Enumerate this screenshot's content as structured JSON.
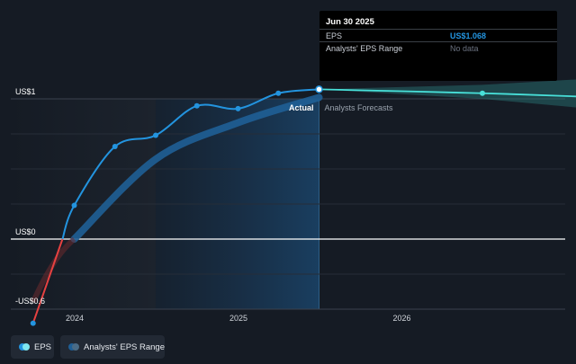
{
  "chart_data": {
    "type": "line",
    "y_label_top": "US$1",
    "y_label_zero": "US$0",
    "y_label_bottom": "-US$0.6",
    "x_ticks": [
      "2024",
      "2025",
      "2026"
    ],
    "actual_label": "Actual",
    "forecast_label": "Analysts Forecasts",
    "ylim": [
      -0.6,
      1.0
    ],
    "series": [
      {
        "name": "EPS",
        "color": "#2394df",
        "points": [
          {
            "x": "2023-09-30",
            "y": -0.6
          },
          {
            "x": "2023-12-31",
            "y": 0.24
          },
          {
            "x": "2024-03-31",
            "y": 0.66
          },
          {
            "x": "2024-06-30",
            "y": 0.74
          },
          {
            "x": "2024-09-30",
            "y": 0.95
          },
          {
            "x": "2024-12-31",
            "y": 0.93
          },
          {
            "x": "2025-03-31",
            "y": 1.04
          },
          {
            "x": "2025-06-30",
            "y": 1.068
          }
        ]
      },
      {
        "name": "Analysts Forecasts",
        "color": "#48e0d9",
        "points": [
          {
            "x": "2025-06-30",
            "y": 1.068
          },
          {
            "x": "2026-06-30",
            "y": 1.04
          },
          {
            "x": "2027-03-31",
            "y": 1.01
          }
        ],
        "range_upper": [
          1.068,
          1.1,
          1.15
        ],
        "range_lower": [
          1.068,
          1.0,
          0.92
        ]
      },
      {
        "name": "Analysts' EPS Range",
        "color": "#1f5f96",
        "points": [
          {
            "x": "2023-12-31",
            "y": 0.0
          },
          {
            "x": "2024-06-30",
            "y": 0.57
          },
          {
            "x": "2024-12-31",
            "y": 0.83
          },
          {
            "x": "2025-06-30",
            "y": 1.01
          }
        ]
      }
    ]
  },
  "tooltip": {
    "date": "Jun 30 2025",
    "eps_label": "EPS",
    "eps_value": "US$1.068",
    "range_label": "Analysts' EPS Range",
    "range_value": "No data"
  },
  "legend": {
    "eps": {
      "label": "EPS",
      "color": "#2394df"
    },
    "range": {
      "label": "Analysts' EPS Range",
      "color": "#1f5f96"
    }
  }
}
